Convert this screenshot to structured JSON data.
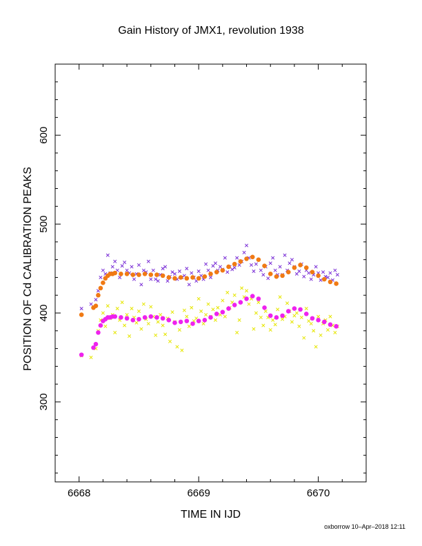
{
  "chart_data": {
    "type": "scatter",
    "title": "Gain History of JMX1, revolution 1938",
    "xlabel": "TIME IN IJD",
    "ylabel": "POSITION OF Cd CALIBRATION PEAKS",
    "xlim": [
      6667.8,
      6670.4
    ],
    "ylim": [
      210,
      680
    ],
    "xticks": [
      6668,
      6669,
      6670
    ],
    "yticks": [
      300,
      400,
      500,
      600
    ],
    "grid": false,
    "colors": {
      "high_raw": "#7a2fd6",
      "high_smooth": "#f07a14",
      "low_raw": "#e6e600",
      "low_smooth": "#ee22ee"
    },
    "series": [
      {
        "marker": "x",
        "x": [
          6668.02,
          6668.1,
          6668.14,
          6668.16,
          6668.18,
          6668.2,
          6668.22,
          6668.24,
          6668.26,
          6668.28,
          6668.3,
          6668.32,
          6668.34,
          6668.36,
          6668.38,
          6668.4,
          6668.42,
          6668.44,
          6668.46,
          6668.48,
          6668.5,
          6668.52,
          6668.54,
          6668.56,
          6668.58,
          6668.6,
          6668.62,
          6668.64,
          6668.66,
          6668.68,
          6668.7,
          6668.72,
          6668.74,
          6668.76,
          6668.78,
          6668.8,
          6668.82,
          6668.84,
          6668.86,
          6668.88,
          6668.9,
          6668.92,
          6668.94,
          6668.96,
          6668.98,
          6669.0,
          6669.02,
          6669.04,
          6669.06,
          6669.08,
          6669.1,
          6669.12,
          6669.14,
          6669.16,
          6669.18,
          6669.2,
          6669.22,
          6669.24,
          6669.26,
          6669.28,
          6669.3,
          6669.32,
          6669.34,
          6669.36,
          6669.38,
          6669.4,
          6669.42,
          6669.44,
          6669.46,
          6669.48,
          6669.5,
          6669.52,
          6669.54,
          6669.56,
          6669.58,
          6669.6,
          6669.62,
          6669.64,
          6669.66,
          6669.68,
          6669.7,
          6669.72,
          6669.74,
          6669.76,
          6669.78,
          6669.8,
          6669.82,
          6669.84,
          6669.86,
          6669.88,
          6669.9,
          6669.92,
          6669.94,
          6669.96,
          6669.98,
          6670.0,
          6670.02,
          6670.04,
          6670.06,
          6670.08,
          6670.1,
          6670.12,
          6670.14,
          6670.16
        ],
        "y": [
          405,
          410,
          415,
          425,
          440,
          448,
          444,
          465,
          445,
          452,
          458,
          448,
          440,
          453,
          457,
          448,
          445,
          452,
          438,
          444,
          454,
          432,
          448,
          446,
          458,
          438,
          448,
          438,
          436,
          443,
          450,
          452,
          436,
          441,
          446,
          444,
          438,
          447,
          440,
          442,
          450,
          432,
          445,
          440,
          436,
          447,
          442,
          438,
          455,
          448,
          440,
          453,
          456,
          448,
          452,
          449,
          462,
          446,
          452,
          449,
          451,
          462,
          454,
          458,
          468,
          476,
          462,
          454,
          447,
          455,
          460,
          448,
          443,
          452,
          439,
          456,
          462,
          448,
          443,
          452,
          443,
          465,
          448,
          456,
          460,
          452,
          444,
          447,
          455,
          441,
          448,
          445,
          438,
          443,
          452,
          445,
          437,
          446,
          441,
          440,
          445,
          437,
          448,
          443
        ]
      },
      {
        "marker": "dot",
        "x": [
          6668.02,
          6668.12,
          6668.14,
          6668.16,
          6668.18,
          6668.2,
          6668.22,
          6668.24,
          6668.26,
          6668.28,
          6668.3,
          6668.35,
          6668.4,
          6668.45,
          6668.5,
          6668.55,
          6668.6,
          6668.65,
          6668.7,
          6668.75,
          6668.8,
          6668.85,
          6668.9,
          6668.95,
          6669.0,
          6669.05,
          6669.1,
          6669.15,
          6669.2,
          6669.25,
          6669.3,
          6669.35,
          6669.4,
          6669.45,
          6669.5,
          6669.55,
          6669.6,
          6669.65,
          6669.7,
          6669.75,
          6669.8,
          6669.85,
          6669.9,
          6669.95,
          6670.0,
          6670.05,
          6670.1,
          6670.15
        ],
        "y": [
          398,
          406,
          408,
          420,
          428,
          434,
          439,
          442,
          444,
          444,
          445,
          444,
          444,
          443,
          443,
          444,
          443,
          443,
          442,
          440,
          439,
          440,
          439,
          440,
          439,
          441,
          444,
          446,
          448,
          452,
          455,
          458,
          461,
          463,
          460,
          453,
          444,
          441,
          442,
          446,
          451,
          454,
          451,
          446,
          442,
          438,
          435,
          433
        ]
      },
      {
        "marker": "x",
        "x": [
          6668.02,
          6668.1,
          6668.14,
          6668.16,
          6668.18,
          6668.2,
          6668.22,
          6668.24,
          6668.26,
          6668.28,
          6668.3,
          6668.32,
          6668.34,
          6668.36,
          6668.38,
          6668.4,
          6668.42,
          6668.44,
          6668.46,
          6668.48,
          6668.5,
          6668.52,
          6668.54,
          6668.56,
          6668.58,
          6668.6,
          6668.62,
          6668.64,
          6668.66,
          6668.68,
          6668.7,
          6668.72,
          6668.74,
          6668.76,
          6668.78,
          6668.8,
          6668.82,
          6668.84,
          6668.86,
          6668.88,
          6668.9,
          6668.92,
          6668.94,
          6668.96,
          6668.98,
          6669.0,
          6669.02,
          6669.04,
          6669.06,
          6669.08,
          6669.1,
          6669.12,
          6669.14,
          6669.16,
          6669.18,
          6669.2,
          6669.22,
          6669.24,
          6669.26,
          6669.28,
          6669.3,
          6669.32,
          6669.34,
          6669.36,
          6669.38,
          6669.4,
          6669.42,
          6669.44,
          6669.46,
          6669.48,
          6669.5,
          6669.52,
          6669.54,
          6669.56,
          6669.58,
          6669.6,
          6669.62,
          6669.64,
          6669.66,
          6669.68,
          6669.7,
          6669.72,
          6669.74,
          6669.76,
          6669.78,
          6669.8,
          6669.82,
          6669.84,
          6669.86,
          6669.88,
          6669.9,
          6669.92,
          6669.94,
          6669.96,
          6669.98,
          6670.0,
          6670.02,
          6670.04,
          6670.06,
          6670.08,
          6670.1,
          6670.12,
          6670.14,
          6670.16
        ],
        "y": [
          352,
          350,
          360,
          380,
          392,
          400,
          385,
          408,
          394,
          398,
          378,
          405,
          392,
          412,
          386,
          398,
          374,
          405,
          395,
          389,
          402,
          382,
          410,
          393,
          388,
          407,
          396,
          375,
          390,
          398,
          386,
          376,
          394,
          368,
          401,
          390,
          362,
          381,
          358,
          403,
          396,
          385,
          406,
          391,
          394,
          416,
          402,
          388,
          398,
          410,
          396,
          404,
          392,
          406,
          398,
          414,
          396,
          423,
          406,
          412,
          420,
          378,
          392,
          428,
          418,
          425,
          410,
          416,
          382,
          400,
          412,
          395,
          386,
          402,
          395,
          381,
          392,
          387,
          404,
          418,
          393,
          396,
          411,
          402,
          390,
          397,
          400,
          385,
          395,
          372,
          405,
          391,
          388,
          380,
          362,
          396,
          375,
          388,
          392,
          381,
          396,
          386,
          378,
          385
        ]
      },
      {
        "marker": "dot",
        "x": [
          6668.02,
          6668.12,
          6668.14,
          6668.16,
          6668.18,
          6668.2,
          6668.22,
          6668.24,
          6668.26,
          6668.28,
          6668.3,
          6668.35,
          6668.4,
          6668.45,
          6668.5,
          6668.55,
          6668.6,
          6668.65,
          6668.7,
          6668.75,
          6668.8,
          6668.85,
          6668.9,
          6668.95,
          6669.0,
          6669.05,
          6669.1,
          6669.15,
          6669.2,
          6669.25,
          6669.3,
          6669.35,
          6669.4,
          6669.45,
          6669.5,
          6669.55,
          6669.6,
          6669.65,
          6669.7,
          6669.75,
          6669.8,
          6669.85,
          6669.9,
          6669.95,
          6670.0,
          6670.05,
          6670.1,
          6670.15
        ],
        "y": [
          353,
          361,
          365,
          378,
          386,
          391,
          393,
          395,
          395,
          396,
          396,
          395,
          394,
          392,
          393,
          395,
          396,
          395,
          394,
          392,
          389,
          390,
          391,
          388,
          391,
          392,
          395,
          399,
          401,
          405,
          409,
          412,
          416,
          419,
          416,
          406,
          397,
          395,
          397,
          402,
          405,
          404,
          399,
          394,
          392,
          390,
          387,
          385
        ]
      }
    ]
  },
  "footer": "oxborrow 10–Apr–2018 12:11"
}
